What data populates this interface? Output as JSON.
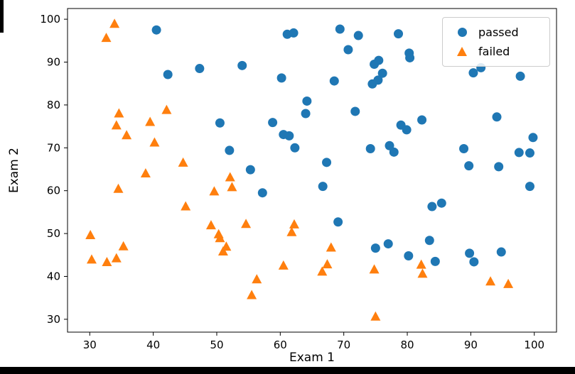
{
  "chart_data": {
    "type": "scatter",
    "title": "",
    "xlabel": "Exam 1",
    "ylabel": "Exam 2",
    "xlim": [
      26.5,
      103.5
    ],
    "ylim": [
      27.0,
      102.5
    ],
    "x_ticks": [
      30,
      40,
      50,
      60,
      70,
      80,
      90,
      100
    ],
    "y_ticks": [
      30,
      40,
      50,
      60,
      70,
      80,
      90,
      100
    ],
    "grid": false,
    "legend_position": "upper right",
    "series": [
      {
        "name": "passed",
        "marker": "circle",
        "color": "#1f77b4",
        "points": [
          [
            60.2,
            86.3
          ],
          [
            79.0,
            75.3
          ],
          [
            61.1,
            96.5
          ],
          [
            75.0,
            46.6
          ],
          [
            76.1,
            87.4
          ],
          [
            84.4,
            43.5
          ],
          [
            82.3,
            76.5
          ],
          [
            69.4,
            97.7
          ],
          [
            54.0,
            89.2
          ],
          [
            69.1,
            52.7
          ],
          [
            70.7,
            92.9
          ],
          [
            77.0,
            47.6
          ],
          [
            89.7,
            65.8
          ],
          [
            77.9,
            69.0
          ],
          [
            62.3,
            70.0
          ],
          [
            80.2,
            44.8
          ],
          [
            61.4,
            72.8
          ],
          [
            85.4,
            57.1
          ],
          [
            52.0,
            69.4
          ],
          [
            64.2,
            80.9
          ],
          [
            83.9,
            56.3
          ],
          [
            94.4,
            65.6
          ],
          [
            77.2,
            70.5
          ],
          [
            97.8,
            86.7
          ],
          [
            62.1,
            96.8
          ],
          [
            91.6,
            88.7
          ],
          [
            79.9,
            74.2
          ],
          [
            99.3,
            61.0
          ],
          [
            90.5,
            43.4
          ],
          [
            97.6,
            68.9
          ],
          [
            74.2,
            69.8
          ],
          [
            71.8,
            78.5
          ],
          [
            75.4,
            85.8
          ],
          [
            40.5,
            97.5
          ],
          [
            80.3,
            92.1
          ],
          [
            66.7,
            61.0
          ],
          [
            64.0,
            78.0
          ],
          [
            72.3,
            96.2
          ],
          [
            60.5,
            73.1
          ],
          [
            58.8,
            75.9
          ],
          [
            99.8,
            72.4
          ],
          [
            47.3,
            88.5
          ],
          [
            50.5,
            75.8
          ],
          [
            88.9,
            69.8
          ],
          [
            94.8,
            45.7
          ],
          [
            67.3,
            66.6
          ],
          [
            57.2,
            59.5
          ],
          [
            80.4,
            91.0
          ],
          [
            68.5,
            85.6
          ],
          [
            75.5,
            90.4
          ],
          [
            78.6,
            96.6
          ],
          [
            94.1,
            77.2
          ],
          [
            90.4,
            87.5
          ],
          [
            74.5,
            84.9
          ],
          [
            89.8,
            45.4
          ],
          [
            83.5,
            48.4
          ],
          [
            42.3,
            87.1
          ],
          [
            99.3,
            68.8
          ],
          [
            55.3,
            64.9
          ],
          [
            74.8,
            89.5
          ]
        ]
      },
      {
        "name": "failed",
        "marker": "triangle",
        "color": "#ff7f0e",
        "points": [
          [
            34.6,
            78.0
          ],
          [
            30.3,
            43.9
          ],
          [
            35.8,
            72.9
          ],
          [
            45.1,
            56.3
          ],
          [
            95.9,
            38.2
          ],
          [
            75.0,
            30.6
          ],
          [
            39.5,
            76.0
          ],
          [
            68.0,
            46.7
          ],
          [
            67.4,
            42.8
          ],
          [
            50.5,
            48.9
          ],
          [
            34.2,
            44.2
          ],
          [
            93.1,
            38.8
          ],
          [
            61.8,
            50.3
          ],
          [
            38.8,
            64.0
          ],
          [
            52.1,
            63.1
          ],
          [
            40.2,
            71.2
          ],
          [
            54.6,
            52.2
          ],
          [
            33.9,
            98.9
          ],
          [
            74.8,
            41.6
          ],
          [
            34.2,
            75.2
          ],
          [
            51.5,
            46.9
          ],
          [
            82.4,
            40.6
          ],
          [
            51.0,
            45.8
          ],
          [
            62.2,
            52.1
          ],
          [
            34.5,
            60.4
          ],
          [
            50.3,
            49.8
          ],
          [
            49.6,
            59.8
          ],
          [
            32.6,
            95.6
          ],
          [
            35.3,
            47.0
          ],
          [
            56.3,
            39.3
          ],
          [
            30.1,
            49.6
          ],
          [
            44.7,
            66.5
          ],
          [
            66.6,
            41.1
          ],
          [
            49.1,
            51.9
          ],
          [
            32.7,
            43.3
          ],
          [
            60.5,
            42.5
          ],
          [
            82.2,
            42.7
          ],
          [
            42.1,
            78.8
          ],
          [
            52.4,
            60.8
          ],
          [
            55.5,
            35.6
          ]
        ]
      }
    ]
  }
}
